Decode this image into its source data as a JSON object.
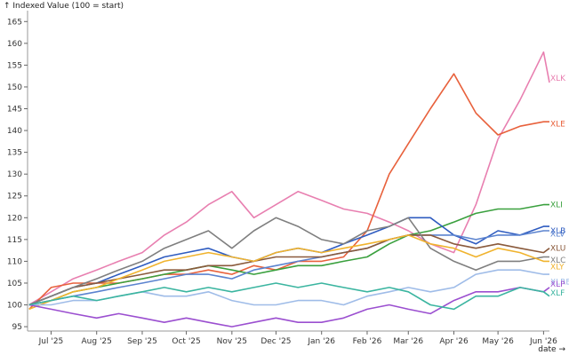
{
  "chart_data": {
    "type": "line",
    "ylabel": "↑ Indexed Value (100 = start)",
    "xlabel": "date →",
    "ylim": [
      94,
      167.5
    ],
    "xlim": [
      "2025-06-15",
      "2026-06-05"
    ],
    "grid": false,
    "legend": "end-of-line labels",
    "yticks": [
      95,
      100,
      105,
      110,
      115,
      120,
      125,
      130,
      135,
      140,
      145,
      150,
      155,
      160,
      165
    ],
    "xticks": [
      {
        "date": "2025-07-01",
        "label": "Jul '25"
      },
      {
        "date": "2025-08-01",
        "label": "Aug '25"
      },
      {
        "date": "2025-09-01",
        "label": "Sep '25"
      },
      {
        "date": "2025-10-01",
        "label": "Oct '25"
      },
      {
        "date": "2025-11-01",
        "label": "Nov '25"
      },
      {
        "date": "2025-12-01",
        "label": "Dec '25"
      },
      {
        "date": "2026-01-01",
        "label": "Jan '26"
      },
      {
        "date": "2026-02-01",
        "label": "Feb '26"
      },
      {
        "date": "2026-03-01",
        "label": "Mar '26"
      },
      {
        "date": "2026-04-01",
        "label": "Apr '26"
      },
      {
        "date": "2026-05-01",
        "label": "May '26"
      },
      {
        "date": "2026-06-01",
        "label": "Jun '26"
      }
    ],
    "dates": [
      "2025-06-16",
      "2025-07-01",
      "2025-07-16",
      "2025-08-01",
      "2025-08-16",
      "2025-09-01",
      "2025-09-16",
      "2025-10-01",
      "2025-10-16",
      "2025-11-01",
      "2025-11-16",
      "2025-12-01",
      "2025-12-16",
      "2026-01-01",
      "2026-01-16",
      "2026-02-01",
      "2026-02-16",
      "2026-03-01",
      "2026-03-16",
      "2026-04-01",
      "2026-04-16",
      "2026-05-01",
      "2026-05-16",
      "2026-06-01",
      "2026-06-05"
    ],
    "series": [
      {
        "name": "XLK",
        "color": "#e87fb0",
        "values": [
          100,
          103,
          106,
          108,
          110,
          112,
          116,
          119,
          123,
          126,
          120,
          123,
          126,
          124,
          122,
          121,
          119,
          117,
          114,
          112,
          123,
          138,
          147,
          158,
          151
        ]
      },
      {
        "name": "XLE",
        "color": "#e8613c",
        "values": [
          99,
          104,
          105,
          105,
          105,
          106,
          107,
          107,
          108,
          107,
          109,
          108,
          110,
          110,
          111,
          117,
          130,
          137,
          145,
          153,
          144,
          139,
          141,
          142,
          142
        ]
      },
      {
        "name": "XLI",
        "color": "#3aa03e",
        "values": [
          100,
          101,
          103,
          104,
          105,
          106,
          107,
          108,
          109,
          108,
          107,
          108,
          109,
          109,
          110,
          111,
          114,
          116,
          117,
          119,
          121,
          122,
          122,
          123,
          123
        ]
      },
      {
        "name": "XLB",
        "color": "#2f5cc0",
        "values": [
          100,
          102,
          104,
          105,
          107,
          109,
          111,
          112,
          113,
          111,
          110,
          112,
          113,
          112,
          114,
          116,
          118,
          120,
          120,
          116,
          114,
          117,
          116,
          118,
          118
        ]
      },
      {
        "name": "XLV",
        "color": "#5b83cf",
        "values": [
          100,
          101,
          102,
          103,
          104,
          105,
          106,
          107,
          107,
          106,
          108,
          109,
          110,
          111,
          112,
          113,
          115,
          116,
          116,
          116,
          115,
          116,
          116,
          117,
          117
        ]
      },
      {
        "name": "XLU",
        "color": "#8a5a3c",
        "values": [
          100,
          102,
          104,
          105,
          106,
          107,
          108,
          108,
          109,
          109,
          110,
          111,
          111,
          111,
          112,
          113,
          115,
          116,
          116,
          114,
          113,
          114,
          113,
          112,
          113
        ]
      },
      {
        "name": "XLC",
        "color": "#7f7f7f",
        "values": [
          100,
          102,
          104,
          106,
          108,
          110,
          113,
          115,
          117,
          113,
          117,
          120,
          118,
          115,
          114,
          117,
          118,
          120,
          113,
          110,
          108,
          110,
          110,
          111,
          111
        ]
      },
      {
        "name": "XLY",
        "color": "#f0b32e",
        "values": [
          99,
          101,
          103,
          104,
          106,
          108,
          110,
          111,
          112,
          111,
          110,
          112,
          113,
          112,
          113,
          114,
          115,
          116,
          114,
          113,
          111,
          113,
          112,
          110,
          110
        ]
      },
      {
        "name": "XLRE",
        "color": "#9fbce8",
        "values": [
          100,
          100,
          101,
          101,
          102,
          103,
          102,
          102,
          103,
          101,
          100,
          100,
          101,
          101,
          100,
          102,
          103,
          104,
          103,
          104,
          107,
          108,
          108,
          107,
          107
        ]
      },
      {
        "name": "XLP",
        "color": "#9b4fd0",
        "values": [
          100,
          99,
          98,
          97,
          98,
          97,
          96,
          97,
          96,
          95,
          96,
          97,
          96,
          96,
          97,
          99,
          100,
          99,
          98,
          101,
          103,
          103,
          104,
          103,
          104
        ]
      },
      {
        "name": "XLF",
        "color": "#3bb5a0",
        "values": [
          100,
          101,
          102,
          101,
          102,
          103,
          104,
          103,
          104,
          103,
          104,
          105,
          104,
          105,
          104,
          103,
          104,
          103,
          100,
          99,
          102,
          102,
          104,
          103,
          102
        ]
      }
    ],
    "end_labels": [
      {
        "text": "XLK",
        "series": "XLK",
        "y": 152
      },
      {
        "text": "XLE",
        "series": "XLE",
        "y": 141.5
      },
      {
        "text": "XLI",
        "series": "XLI",
        "y": 123
      },
      {
        "text": "XLB",
        "series": "XLB",
        "y": 117
      },
      {
        "text": "XLV",
        "series": "XLV",
        "y": 116.3
      },
      {
        "text": "XLU",
        "series": "XLU",
        "y": 113
      },
      {
        "text": "XLC",
        "series": "XLC",
        "y": 110.3
      },
      {
        "text": "XLY",
        "series": "XLY",
        "y": 108.8
      },
      {
        "text": "XLRE",
        "series": "XLRE",
        "y": 105.3
      },
      {
        "text": "XLP",
        "series": "XLP",
        "y": 104.8
      },
      {
        "text": "XLF",
        "series": "XLF",
        "y": 102.8
      }
    ]
  }
}
